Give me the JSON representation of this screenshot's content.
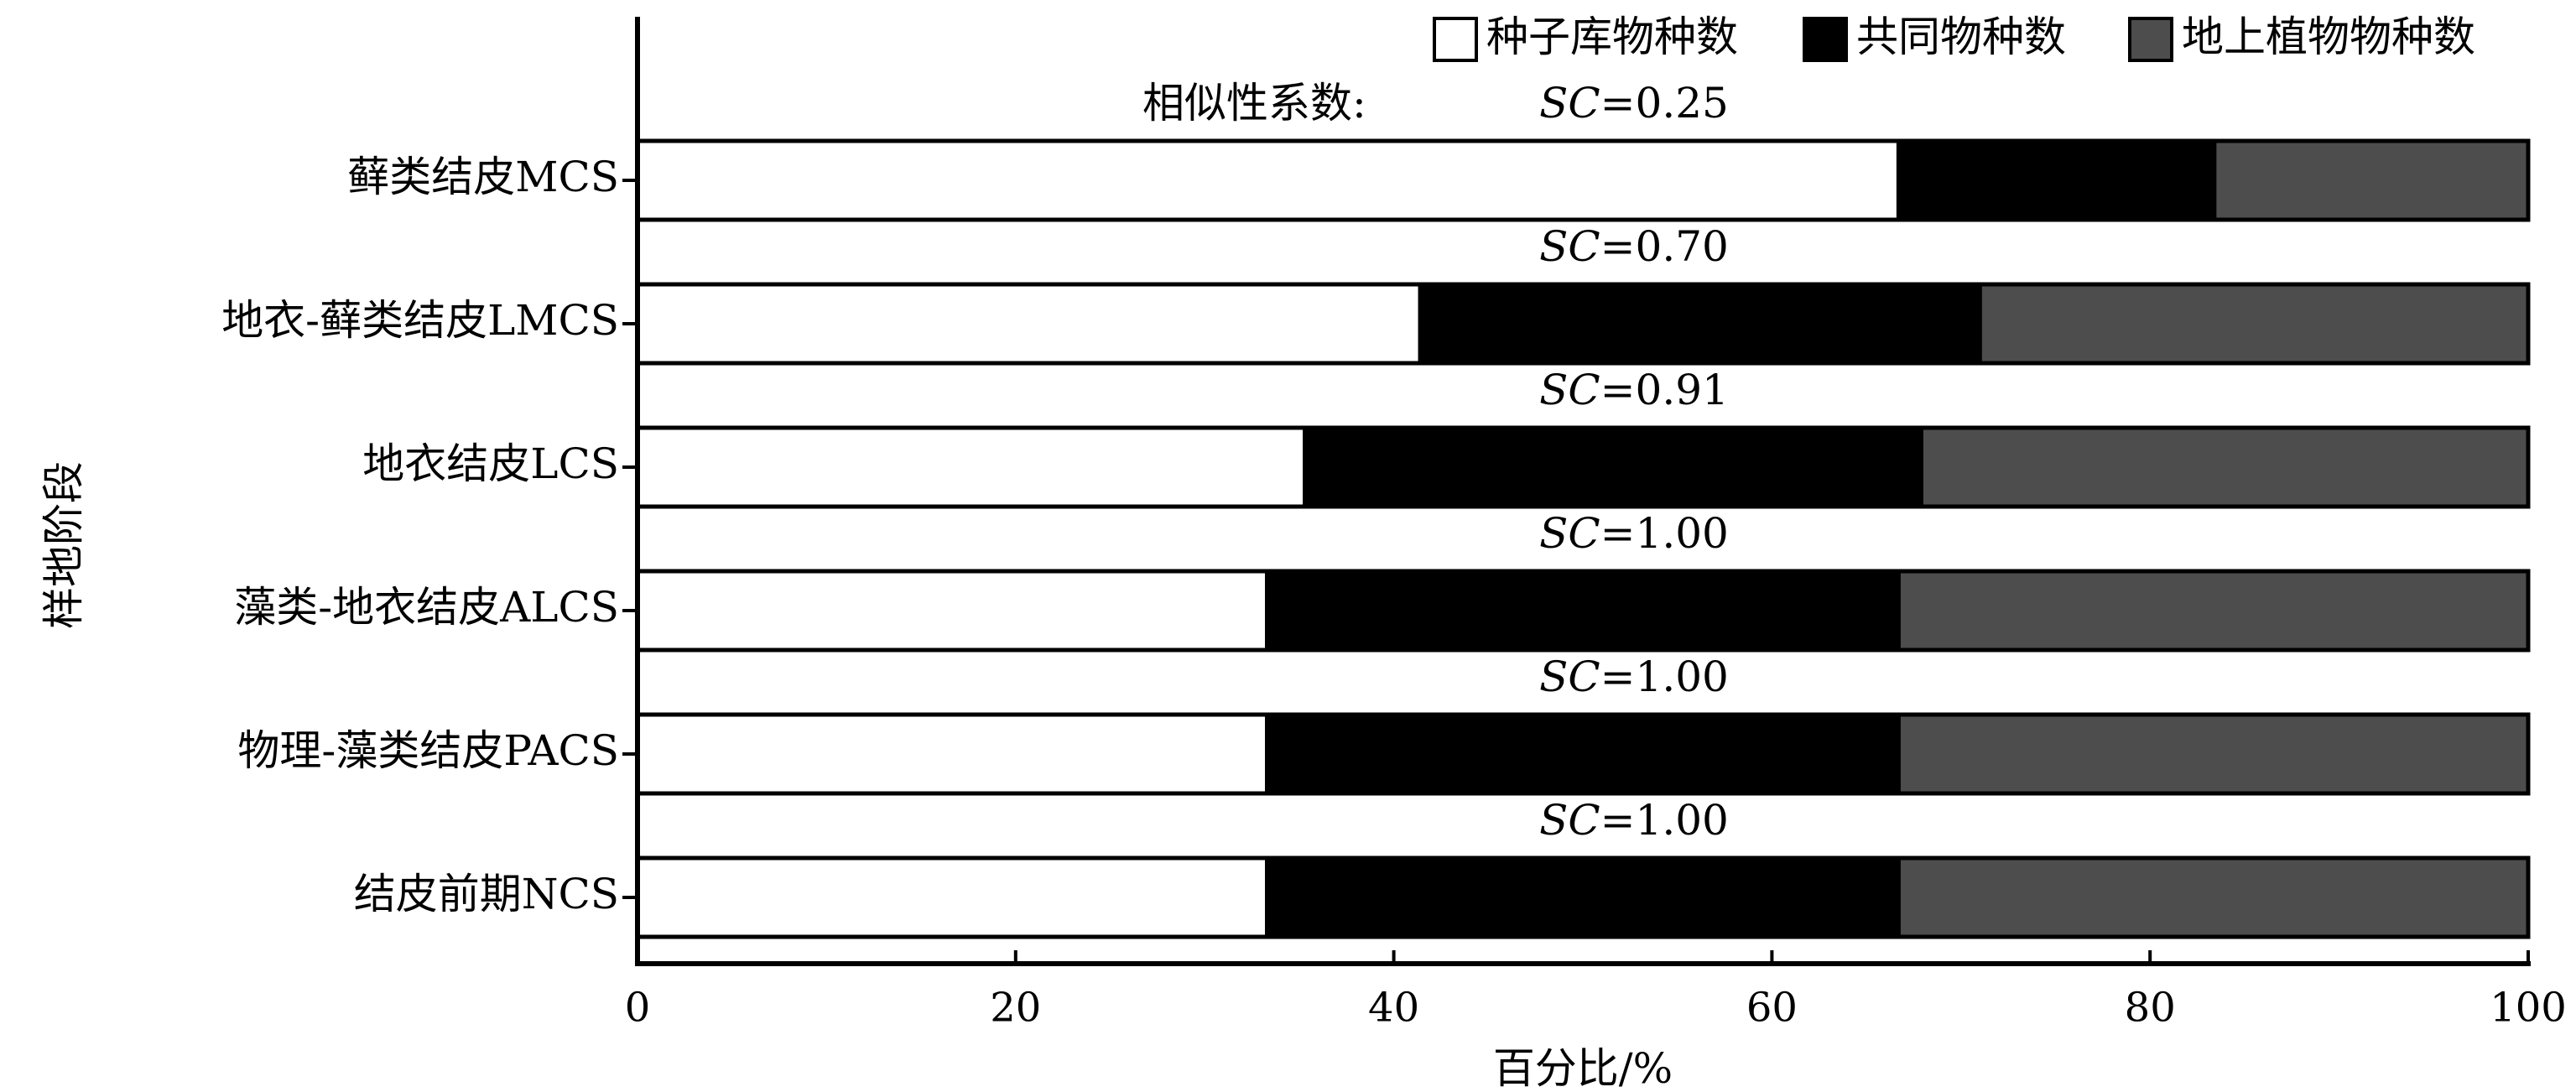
{
  "chart_data": {
    "type": "stacked_barh",
    "categories": [
      "藓类结皮MCS",
      "地衣-藓类结皮LMCS",
      "地衣结皮LCS",
      "藻类-地衣结皮ALCS",
      "物理-藻类结皮PACS",
      "结皮前期NCS"
    ],
    "series": [
      {
        "name": "种子库物种数",
        "color": "#ffffff",
        "values": [
          66.7,
          41.4,
          35.3,
          33.3,
          33.3,
          33.3
        ]
      },
      {
        "name": "共同物种数",
        "color": "#000000",
        "values": [
          16.7,
          29.6,
          32.6,
          33.4,
          33.4,
          33.4
        ]
      },
      {
        "name": "地上植物物种数",
        "color": "#4d4d4d",
        "values": [
          16.6,
          29.0,
          32.1,
          33.3,
          33.3,
          33.3
        ]
      }
    ],
    "similarity_title": "相似性系数:",
    "similarity_labels": [
      "SC=0.25",
      "SC=0.70",
      "SC=0.91",
      "SC=1.00",
      "SC=1.00",
      "SC=1.00"
    ],
    "x_label": "百分比/%",
    "y_label": "样地阶段",
    "xlim": [
      0,
      100
    ],
    "xticks": [
      0,
      20,
      40,
      60,
      80,
      100
    ],
    "legend": "top-right"
  }
}
